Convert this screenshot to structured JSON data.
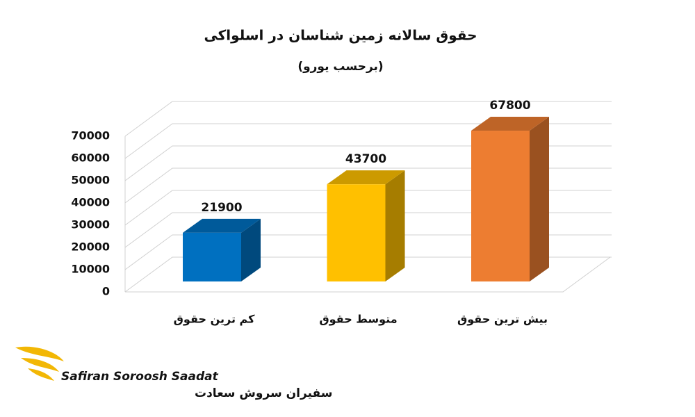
{
  "chart_data": {
    "type": "bar3d",
    "title": "حقوق سالانه زمین شناسان در اسلواکی",
    "subtitle": "(برحسب یورو)",
    "categories": [
      "کم ترین حقوق",
      "متوسط حقوق",
      "بیش ترین حقوق"
    ],
    "values": [
      21900,
      43700,
      67800
    ],
    "colors": [
      "#0070c0",
      "#ffc000",
      "#ed7d31"
    ],
    "ylim": [
      0,
      70000
    ],
    "yticks": [
      0,
      10000,
      20000,
      30000,
      40000,
      50000,
      60000,
      70000
    ],
    "grid": true
  },
  "logo": {
    "name_en": "Safiran Soroosh Saadat",
    "name_fa": "سفیران سروش سعادت"
  }
}
